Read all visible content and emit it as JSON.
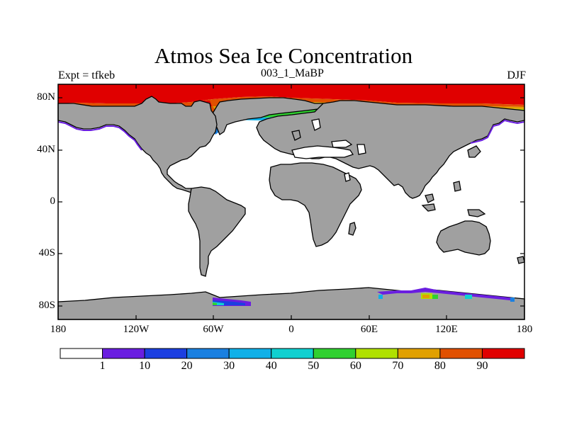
{
  "title": "Atmos Sea Ice Concentration",
  "left_string": "Expt = tfkeb",
  "center_string": "003_1_MaBP",
  "right_string": "DJF",
  "lat_ticks": [
    "80N",
    "40N",
    "0",
    "40S",
    "80S"
  ],
  "lon_ticks": [
    "180",
    "120W",
    "60W",
    "0",
    "60E",
    "120E",
    "180"
  ],
  "colorbar": {
    "labels": [
      "1",
      "10",
      "20",
      "30",
      "40",
      "50",
      "60",
      "70",
      "80",
      "90"
    ],
    "colors": [
      "#ffffff",
      "#6a1ee0",
      "#1c3fe0",
      "#1a80e0",
      "#10b0e8",
      "#10d0d0",
      "#30d030",
      "#b0e000",
      "#e0a000",
      "#e05000",
      "#e00000"
    ]
  },
  "colors": {
    "land": "#a0a0a0",
    "ice_high": "#e00000"
  }
}
